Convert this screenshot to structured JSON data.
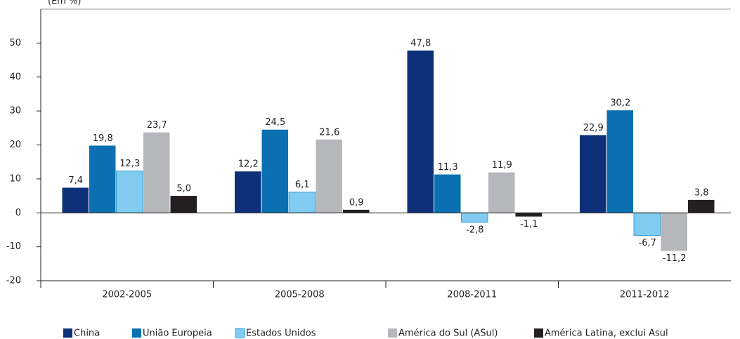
{
  "chart_data": {
    "type": "bar",
    "y_label": "(Em %)",
    "categories": [
      "2002-2005",
      "2005-2008",
      "2008-2011",
      "2011-2012"
    ],
    "series": [
      {
        "name": "China",
        "color": "#0d3079",
        "values": [
          7.4,
          12.2,
          47.8,
          22.9
        ],
        "value_labels": [
          "7,4",
          "12,2",
          "47,8",
          "22,9"
        ]
      },
      {
        "name": "União Europeia",
        "color": "#0a70b1",
        "values": [
          19.8,
          24.5,
          11.3,
          30.2
        ],
        "value_labels": [
          "19,8",
          "24,5",
          "11,3",
          "30,2"
        ]
      },
      {
        "name": "Estados Unidos",
        "color": "#80cbef",
        "values": [
          12.3,
          6.1,
          -2.8,
          -6.7
        ],
        "value_labels": [
          "12,3",
          "6,1",
          "-2,8",
          "-6,7"
        ]
      },
      {
        "name": "América do Sul (ASul)",
        "color": "#b6b7ba",
        "values": [
          23.7,
          21.6,
          11.9,
          -11.2
        ],
        "value_labels": [
          "23,7",
          "21,6",
          "11,9",
          "-11,2"
        ]
      },
      {
        "name": "América Latina, exclui Asul",
        "color": "#231f20",
        "values": [
          5.0,
          0.9,
          -1.1,
          3.8
        ],
        "value_labels": [
          "5,0",
          "0,9",
          "-1,1",
          "3,8"
        ]
      }
    ],
    "ylim": [
      -20,
      60
    ],
    "yticks": [
      -20,
      -10,
      0,
      10,
      20,
      30,
      40,
      50
    ]
  }
}
